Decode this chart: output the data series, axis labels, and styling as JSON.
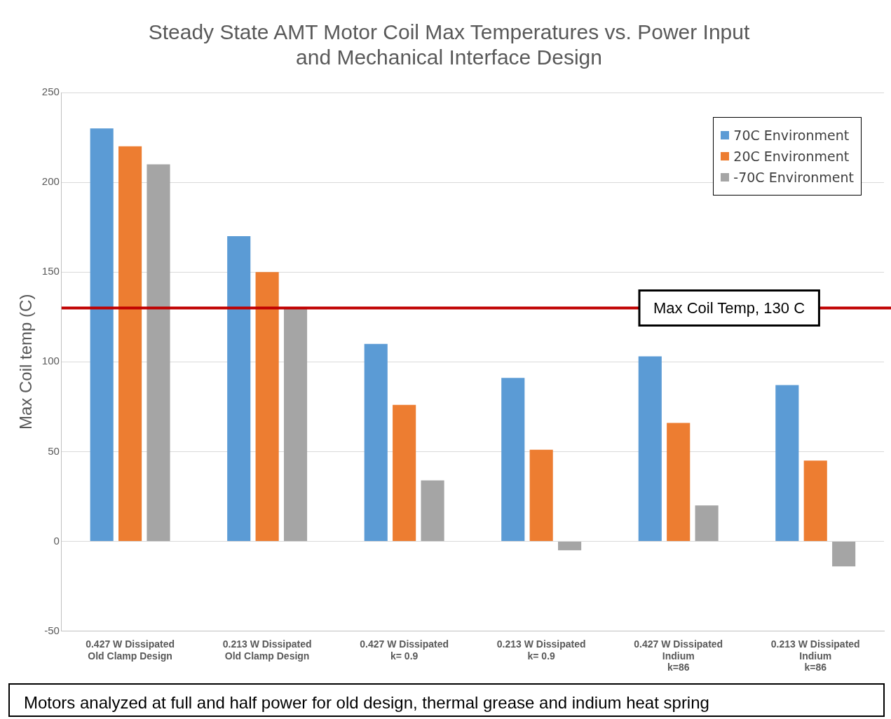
{
  "chart_data": {
    "type": "bar",
    "title": "Steady State AMT Motor Coil Max Temperatures vs. Power Input\nand Mechanical Interface Design",
    "ylabel": "Max Coil temp (C)",
    "categories": [
      "0.427 W Dissipated\nOld Clamp Design",
      "0.213 W Dissipated\nOld Clamp Design",
      "0.427 W Dissipated\nk= 0.9",
      "0.213 W Dissipated\nk= 0.9",
      "0.427 W Dissipated\nIndium\nk=86",
      "0.213 W Dissipated\nIndium\nk=86"
    ],
    "series": [
      {
        "name": "70C Environment",
        "color": "#5b9bd5",
        "values": [
          230,
          170,
          110,
          91,
          103,
          87
        ]
      },
      {
        "name": "20C Environment",
        "color": "#ed7d31",
        "values": [
          220,
          150,
          76,
          51,
          66,
          45
        ]
      },
      {
        "name": "-70C Environment",
        "color": "#a5a5a5",
        "values": [
          210,
          130,
          34,
          -5,
          20,
          -14
        ]
      }
    ],
    "ylim": [
      -50,
      250
    ],
    "yticks": [
      -50,
      0,
      50,
      100,
      150,
      200,
      250
    ],
    "grid": "y",
    "legend": "top right",
    "ref_lines": [
      {
        "axis": "y",
        "value": 130,
        "label": "Max Coil Temp, 130 C",
        "color": "#c00000"
      }
    ],
    "annotations": [
      "Motors analyzed at full and half power for old design, thermal grease and indium heat spring"
    ]
  }
}
